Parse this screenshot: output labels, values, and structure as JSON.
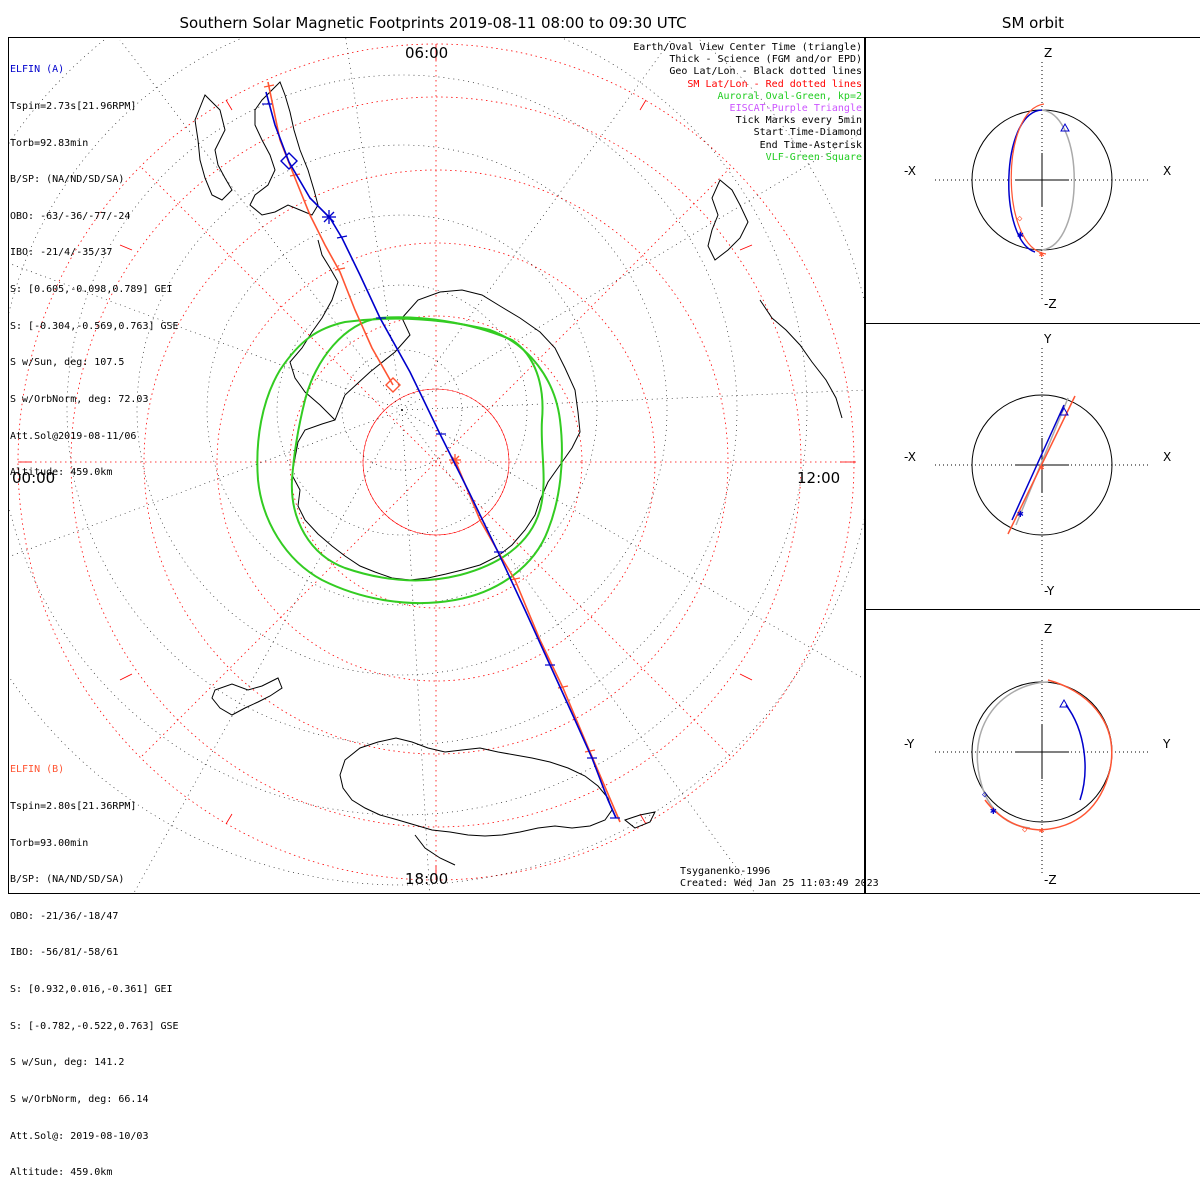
{
  "title": "Southern Solar Magnetic Footprints 2019-08-11 08:00 to 09:30 UTC",
  "orbit_title": "SM orbit",
  "mlt_labels": {
    "top": "06:00",
    "left": "00:00",
    "right": "12:00",
    "bottom": "18:00"
  },
  "sat_a": {
    "name": "ELFIN (A)",
    "lines": [
      "Tspin=2.73s[21.96RPM]",
      "Torb=92.83min",
      "B/SP: (NA/ND/SD/SA)",
      "OBO: -63/-36/-77/-24",
      "IBO: -21/4/-35/37",
      "S: [0.605,-0.098,0.789] GEI",
      "S: [-0.304,-0.569,0.763] GSE",
      "S w/Sun, deg: 107.5",
      "S w/OrbNorm, deg: 72.03",
      "Att.Sol@2019-08-11/06",
      "Altitude: 459.0km"
    ]
  },
  "sat_b": {
    "name": "ELFIN (B)",
    "lines": [
      "Tspin=2.80s[21.36RPM]",
      "Torb=93.00min",
      "B/SP: (NA/ND/SD/SA)",
      "OBO: -21/36/-18/47",
      "IBO: -56/81/-58/61",
      "S: [0.932,0.016,-0.361] GEI",
      "S: [-0.782,-0.522,0.763] GSE",
      "S w/Sun, deg: 141.2",
      "S w/OrbNorm, deg: 66.14",
      "Att.Sol@: 2019-08-10/03",
      "Altitude: 459.0km"
    ]
  },
  "legend": [
    {
      "text": "Earth/Oval View Center Time (triangle)",
      "color": "#000000"
    },
    {
      "text": "Thick - Science (FGM and/or EPD)",
      "color": "#000000"
    },
    {
      "text": "Geo Lat/Lon - Black dotted lines",
      "color": "#000000"
    },
    {
      "text": "SM Lat/Lon - Red dotted lines",
      "color": "#ff0000"
    },
    {
      "text": "Auroral Oval-Green, kp=2",
      "color": "#22cc22"
    },
    {
      "text": "EISCAT-Purple Triangle",
      "color": "#cc55ff"
    },
    {
      "text": "Tick Marks every 5min",
      "color": "#000000"
    },
    {
      "text": "Start Time-Diamond",
      "color": "#000000"
    },
    {
      "text": "End Time-Asterisk",
      "color": "#000000"
    },
    {
      "text": "VLF-Green Square",
      "color": "#22cc22"
    }
  ],
  "credit": [
    "Tsyganenko-1996",
    "Created: Wed Jan 25 11:03:49 2023"
  ],
  "orbit_panels": [
    {
      "left": "-X",
      "right": "X",
      "top": "Z",
      "bottom": "-Z"
    },
    {
      "left": "-X",
      "right": "X",
      "top": "Y",
      "bottom": "-Y"
    },
    {
      "left": "-Y",
      "right": "Y",
      "top": "Z",
      "bottom": "-Z"
    }
  ],
  "colors": {
    "sat_a": "#0000cc",
    "sat_b": "#ff5533",
    "oval": "#33cc22",
    "sm_grid": "#ff0000",
    "geo_grid": "#000000"
  }
}
